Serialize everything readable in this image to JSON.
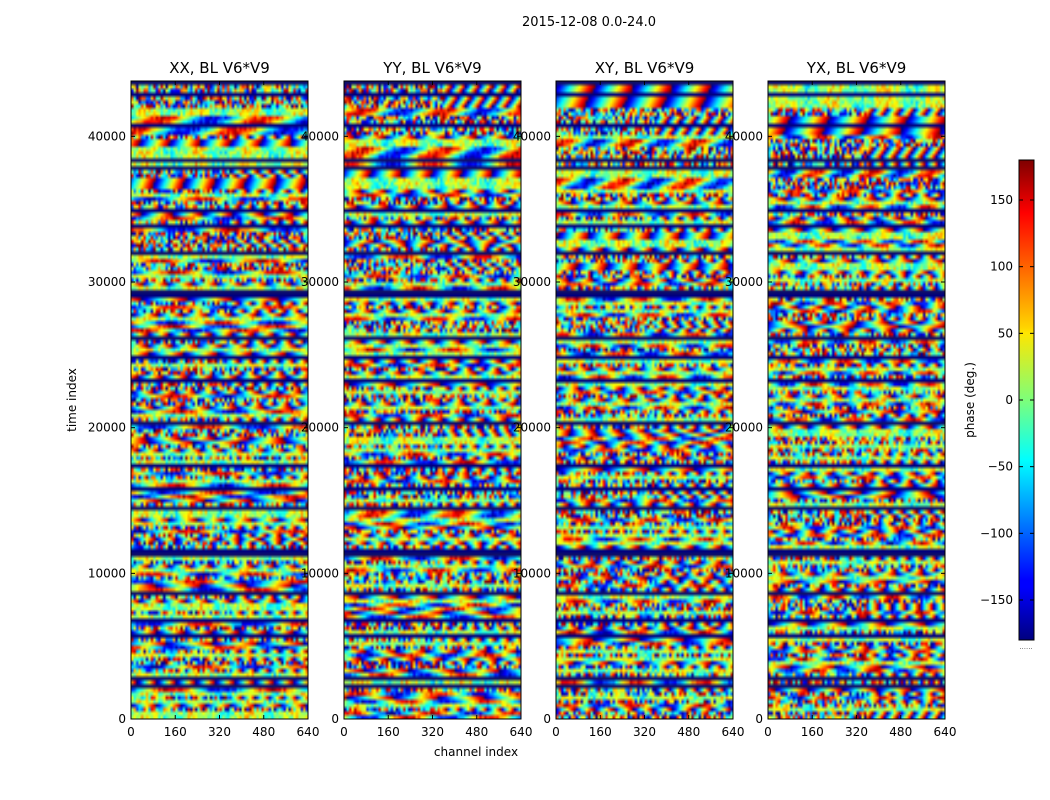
{
  "chart_data": {
    "type": "heatmap",
    "suptitle": "2015-12-08 0.0-24.0",
    "panels": [
      {
        "title": "XX, BL V6*V9"
      },
      {
        "title": "YY, BL V6*V9"
      },
      {
        "title": "XY, BL V6*V9"
      },
      {
        "title": "YX, BL V6*V9"
      }
    ],
    "xlabel": "channel index",
    "ylabel": "time index",
    "xlim": [
      0,
      640
    ],
    "ylim": [
      0,
      43800
    ],
    "x_ticks": [
      "0",
      "160",
      "320",
      "480",
      "640"
    ],
    "x_tick_values": [
      0,
      160,
      320,
      480,
      640
    ],
    "y_ticks": [
      "0",
      "10000",
      "20000",
      "30000",
      "40000"
    ],
    "y_tick_values": [
      0,
      10000,
      20000,
      30000,
      40000
    ],
    "colorbar": {
      "label": "phase (deg.)",
      "range": [
        -180,
        180
      ],
      "ticks": [
        "−150",
        "−100",
        "−50",
        "0",
        "50",
        "100",
        "150"
      ],
      "tick_values": [
        -150,
        -100,
        -50,
        0,
        50,
        100,
        150
      ],
      "colormap": "jet",
      "offset_text": "......"
    }
  }
}
